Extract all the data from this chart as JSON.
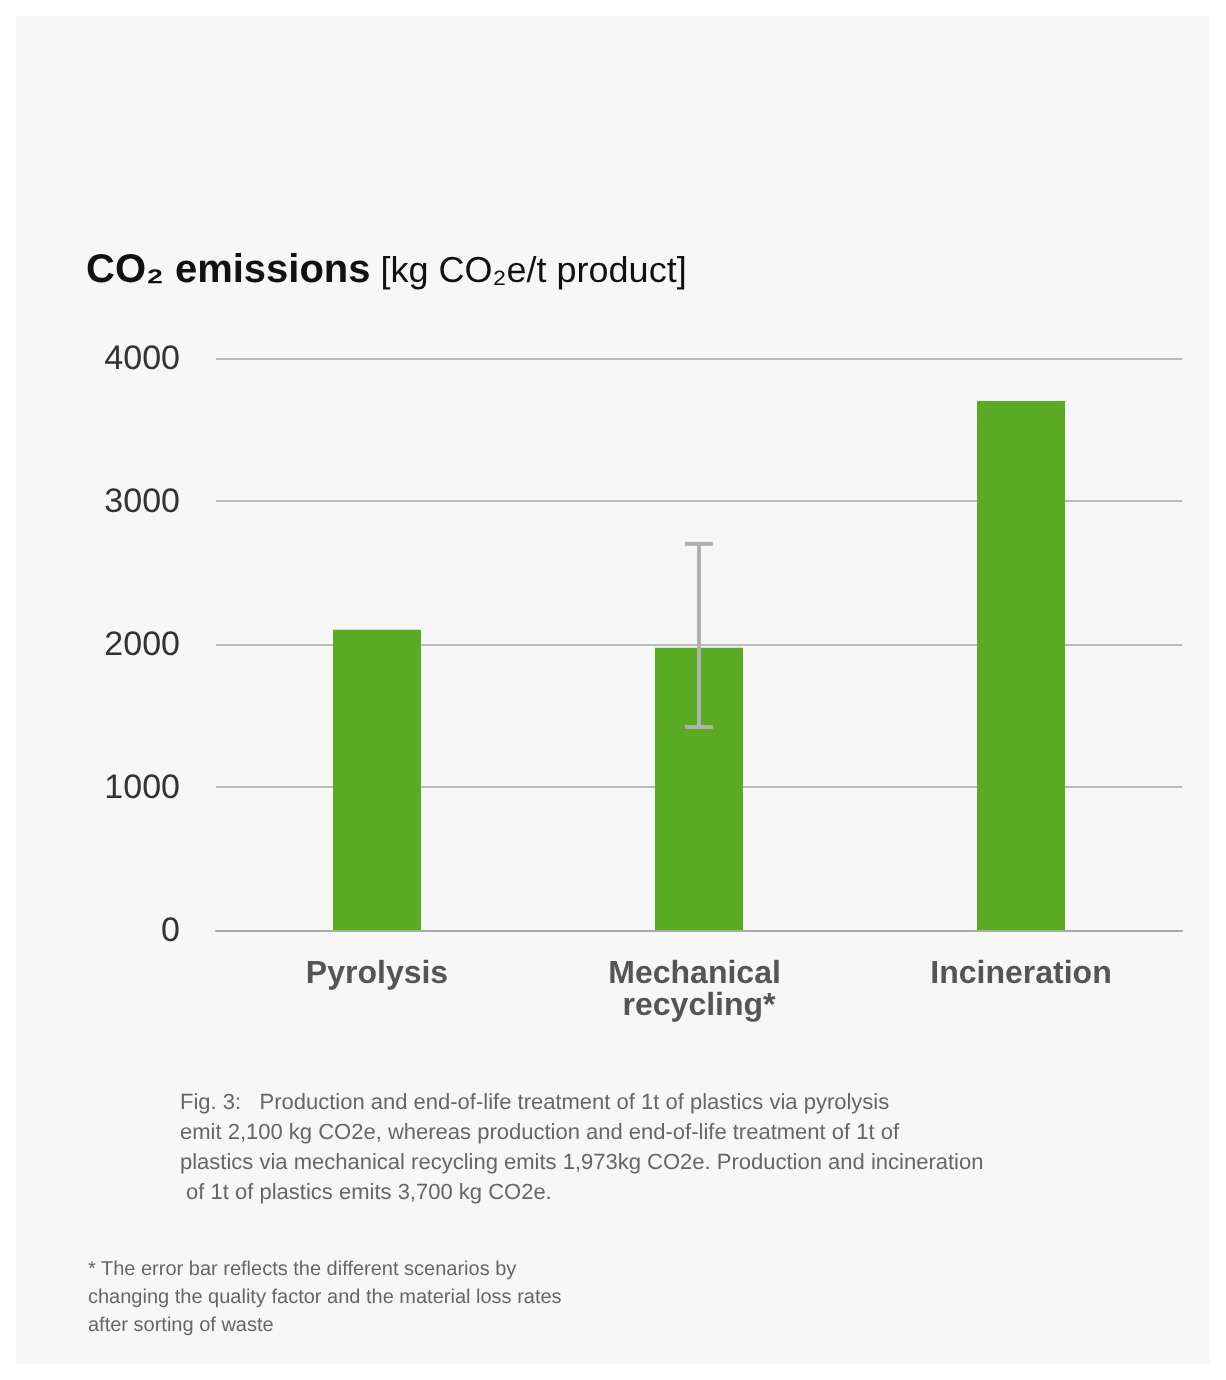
{
  "chart_data": {
    "type": "bar",
    "title": "CO₂ emissions",
    "ylabel": "[kg CO₂e/t product]",
    "categories": [
      "Pyrolysis",
      "Mechanical recycling*",
      "Incineration"
    ],
    "values": [
      2100,
      1973,
      3700
    ],
    "errors": [
      null,
      [
        1420,
        2700
      ],
      null
    ],
    "color": "#5aaa23",
    "ylim": [
      0,
      4000
    ],
    "yticks": [
      0,
      1000,
      2000,
      3000,
      4000
    ],
    "grid": "y",
    "annotations": [
      "Fig. 3:   Production and end-of-life treatment of 1t of plastics via pyrolysis emit 2,100 kg CO2e, whereas production and end-of-life treatment of 1t of plastics via mechanical recycling emits 1,973kg CO2e. Production and incineration of 1t of plastics emits 3,700 kg CO2e.",
      "* The error bar reflects the different scenarios by changing the quality factor and the material loss rates after sorting of waste"
    ]
  }
}
